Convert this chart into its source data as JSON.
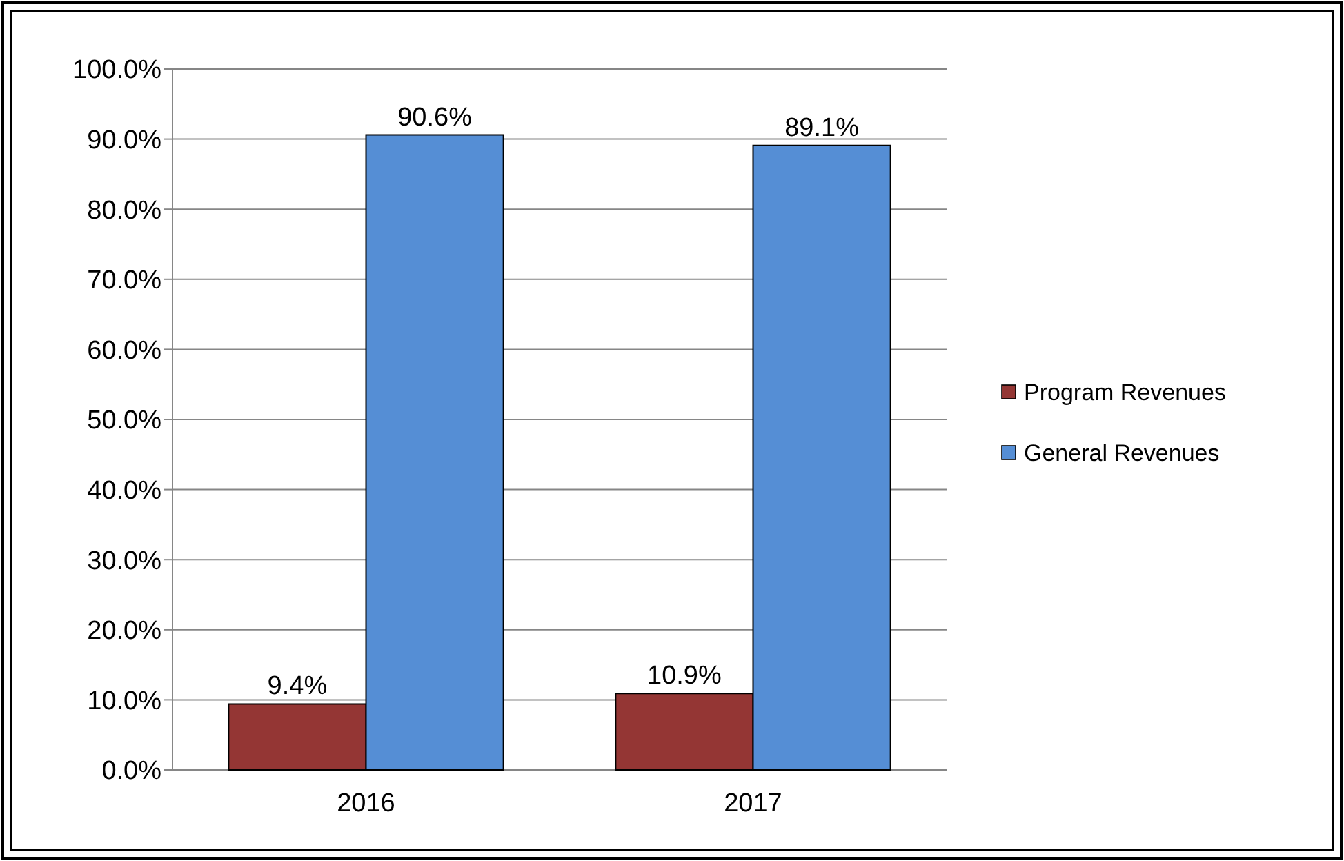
{
  "chart_data": {
    "type": "bar",
    "categories": [
      "2016",
      "2017"
    ],
    "series": [
      {
        "name": "Program Revenues",
        "color": "#943634",
        "values": [
          9.4,
          10.9
        ],
        "value_labels": [
          "9.4%",
          "10.9%"
        ]
      },
      {
        "name": "General Revenues",
        "color": "#558ed5",
        "values": [
          90.6,
          89.1
        ],
        "value_labels": [
          "90.6%",
          "89.1%"
        ]
      }
    ],
    "ylim": [
      0,
      100
    ],
    "yticks": [
      {
        "value": 0,
        "label": "0.0%"
      },
      {
        "value": 10,
        "label": "10.0%"
      },
      {
        "value": 20,
        "label": "20.0%"
      },
      {
        "value": 30,
        "label": "30.0%"
      },
      {
        "value": 40,
        "label": "40.0%"
      },
      {
        "value": 50,
        "label": "50.0%"
      },
      {
        "value": 60,
        "label": "60.0%"
      },
      {
        "value": 70,
        "label": "70.0%"
      },
      {
        "value": 80,
        "label": "80.0%"
      },
      {
        "value": 90,
        "label": "90.0%"
      },
      {
        "value": 100,
        "label": "100.0%"
      }
    ],
    "grid": "y",
    "legend": "right"
  }
}
